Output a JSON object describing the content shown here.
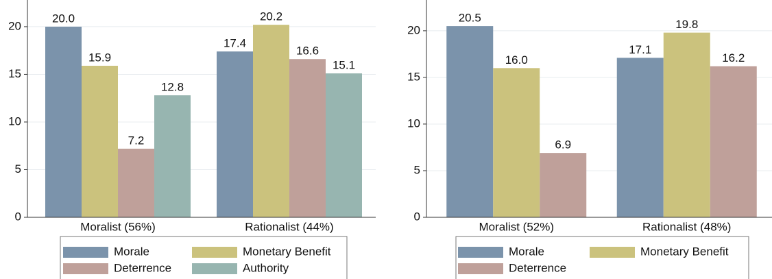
{
  "chart_data": [
    {
      "type": "bar",
      "categories": [
        "Moralist (56%)",
        "Rationalist (44%)"
      ],
      "series": [
        {
          "name": "Morale",
          "color": "#7b93ab",
          "values": [
            20.0,
            17.4
          ],
          "value_labels": [
            "20.0",
            "17.4"
          ]
        },
        {
          "name": "Monetary Benefit",
          "color": "#cbc27d",
          "values": [
            15.9,
            20.2
          ],
          "value_labels": [
            "15.9",
            "20.2"
          ]
        },
        {
          "name": "Deterrence",
          "color": "#bfa09a",
          "values": [
            7.2,
            16.6
          ],
          "value_labels": [
            "7.2",
            "16.6"
          ]
        },
        {
          "name": "Authority",
          "color": "#97b5b0",
          "values": [
            12.8,
            15.1
          ],
          "value_labels": [
            "12.8",
            "15.1"
          ]
        }
      ],
      "ylim": [
        0,
        22.8
      ],
      "yticks": [
        0,
        5,
        10,
        15,
        20
      ],
      "grid": true,
      "legend": "bottom"
    },
    {
      "type": "bar",
      "categories": [
        "Moralist (52%)",
        "Rationalist (48%)"
      ],
      "series": [
        {
          "name": "Morale",
          "color": "#7b93ab",
          "values": [
            20.5,
            17.1
          ],
          "value_labels": [
            "20.5",
            "17.1"
          ]
        },
        {
          "name": "Monetary Benefit",
          "color": "#cbc27d",
          "values": [
            16.0,
            19.8
          ],
          "value_labels": [
            "16.0",
            "19.8"
          ]
        },
        {
          "name": "Deterrence",
          "color": "#bfa09a",
          "values": [
            6.9,
            16.2
          ],
          "value_labels": [
            "6.9",
            "16.2"
          ]
        }
      ],
      "ylim": [
        0,
        23.3
      ],
      "yticks": [
        0,
        5,
        10,
        15,
        20
      ],
      "grid": true,
      "legend": "bottom"
    }
  ]
}
